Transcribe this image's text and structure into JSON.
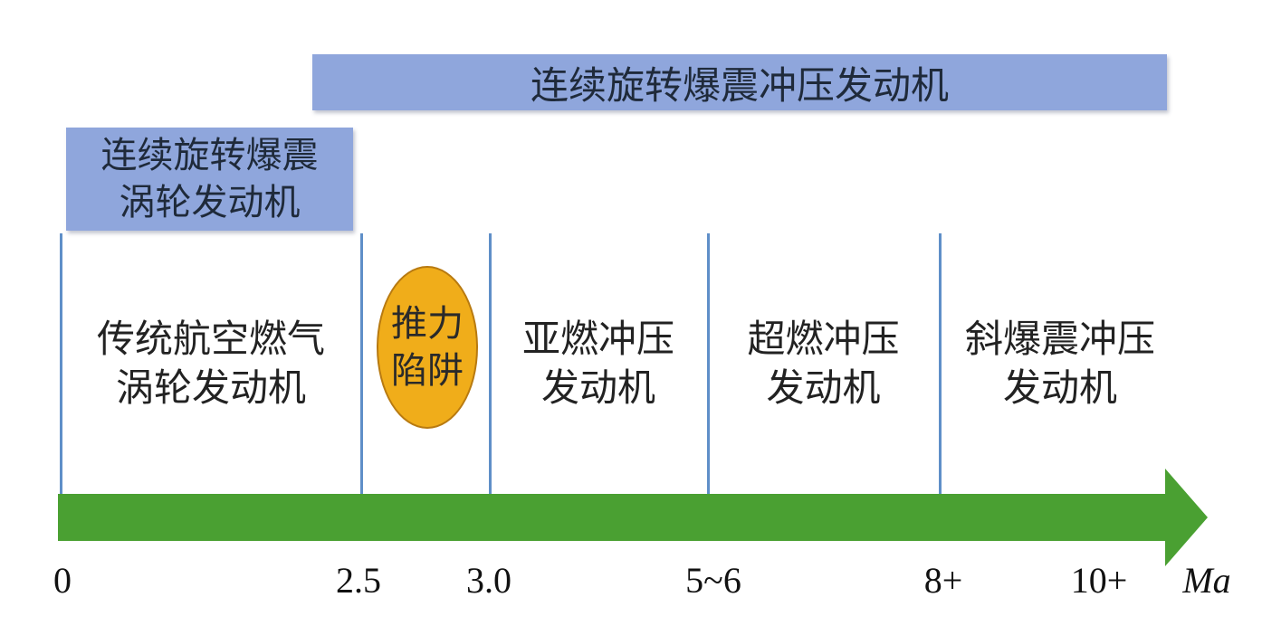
{
  "colors": {
    "band": "#8fa6dc",
    "divider": "#5f8fc8",
    "arrow": "#4aa032",
    "trap_fill": "#f0ad1a",
    "trap_border": "#b87a10"
  },
  "bands": {
    "top": "连续旋转爆震冲压发动机",
    "left_line1": "连续旋转爆震",
    "left_line2": "涡轮发动机"
  },
  "regions": [
    {
      "label": "传统航空燃气\n涡轮发动机"
    },
    {
      "label": "亚燃冲压\n发动机"
    },
    {
      "label": "超燃冲压\n发动机"
    },
    {
      "label": "斜爆震冲压\n发动机"
    }
  ],
  "thrust_trap": "推力\n陷阱",
  "axis": {
    "ticks": [
      "0",
      "2.5",
      "3.0",
      "5~6",
      "8+",
      "10+"
    ],
    "unit": "Ma"
  }
}
